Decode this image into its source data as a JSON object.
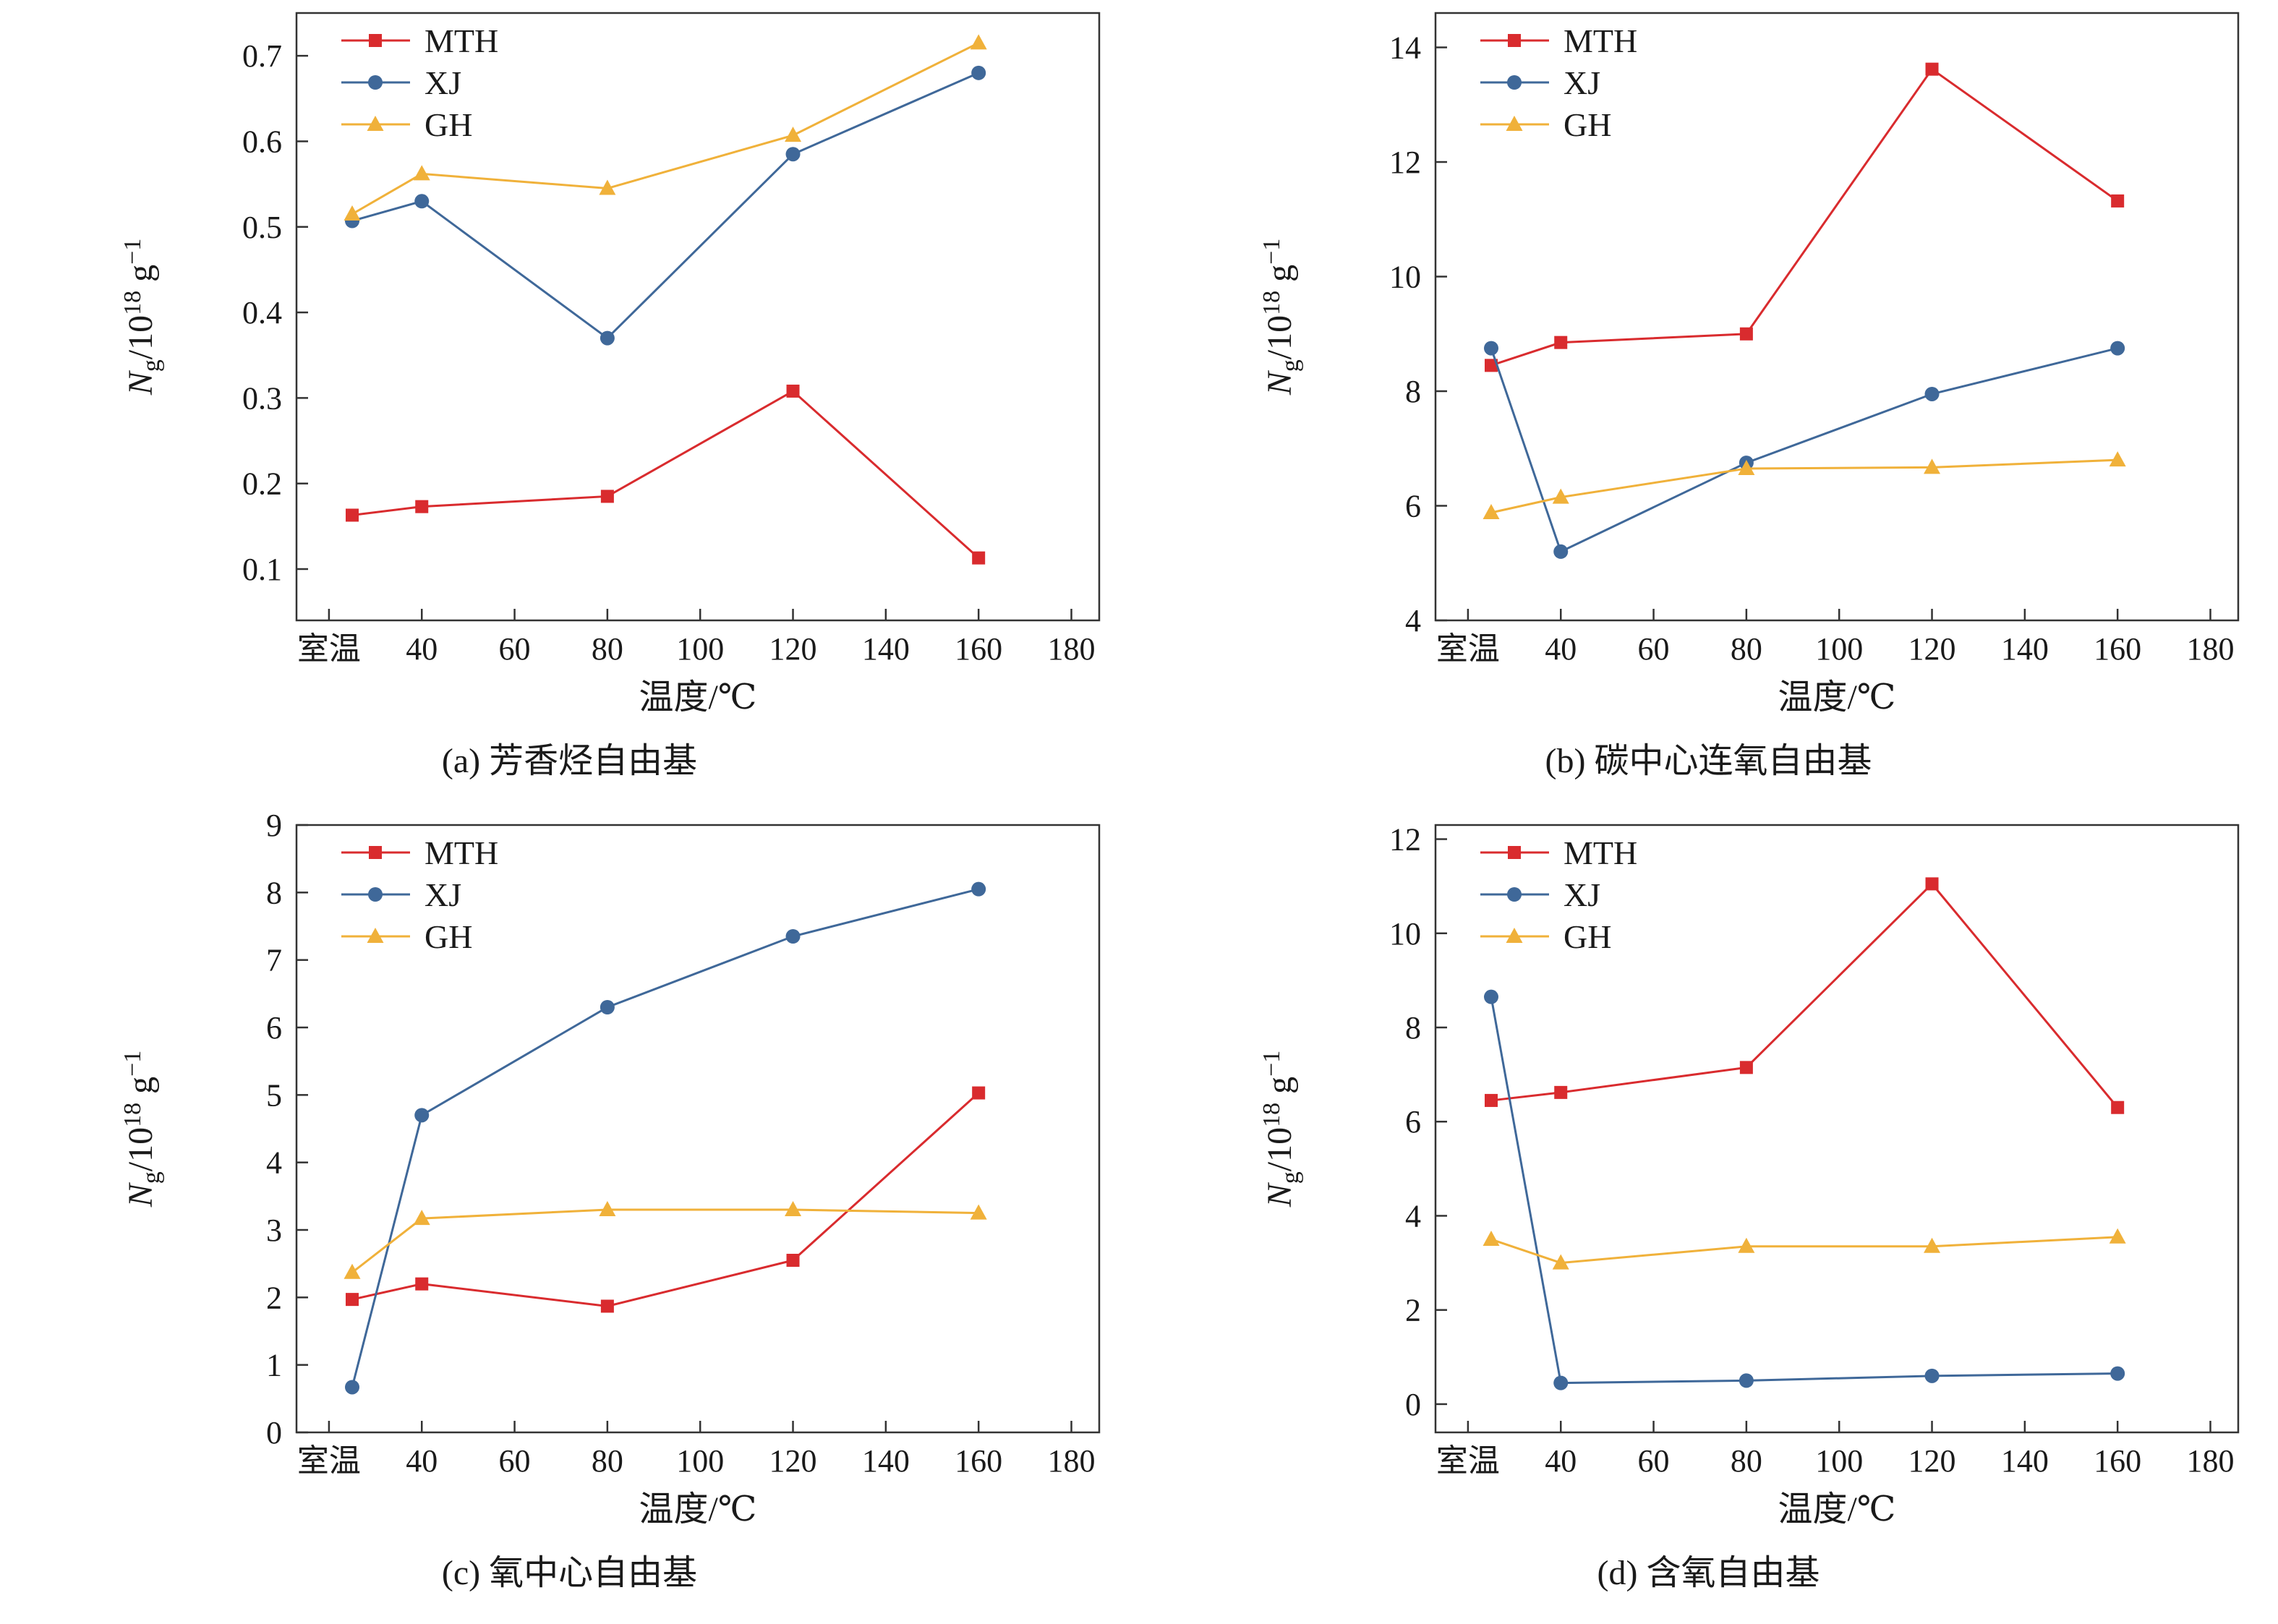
{
  "ylabel_parts": [
    {
      "t": "N",
      "i": true
    },
    {
      "t": "g",
      "sub": true
    },
    {
      "t": "/10"
    },
    {
      "t": "18",
      "sup": true
    },
    {
      "t": " g"
    },
    {
      "t": "−1",
      "sup": true
    }
  ],
  "chart_data": [
    {
      "id": "a",
      "type": "line",
      "caption": "(a) 芳香烃自由基",
      "xlabel": "温度/℃",
      "ylabel": "Ng/10^18 g^-1",
      "legend_position": "top-left",
      "x": {
        "lim": [
          13,
          186
        ],
        "ticks": {
          "values": [
            20,
            40,
            60,
            80,
            100,
            120,
            140,
            160,
            180
          ],
          "labels": [
            "室温",
            "40",
            "60",
            "80",
            "100",
            "120",
            "140",
            "160",
            "180"
          ]
        }
      },
      "y": {
        "lim": [
          0.04,
          0.75
        ],
        "ticks": {
          "values": [
            0.1,
            0.2,
            0.3,
            0.4,
            0.5,
            0.6,
            0.7
          ],
          "labels": [
            "0.1",
            "0.2",
            "0.3",
            "0.4",
            "0.5",
            "0.6",
            "0.7"
          ]
        }
      },
      "series": [
        {
          "name": "MTH",
          "color": "#d92b2e",
          "marker": "square",
          "x": [
            25,
            40,
            80,
            120,
            160
          ],
          "y": [
            0.163,
            0.173,
            0.185,
            0.308,
            0.113
          ]
        },
        {
          "name": "XJ",
          "color": "#3f6899",
          "marker": "circle",
          "x": [
            25,
            40,
            80,
            120,
            160
          ],
          "y": [
            0.507,
            0.53,
            0.37,
            0.585,
            0.68
          ]
        },
        {
          "name": "GH",
          "color": "#f0b13a",
          "marker": "triangle",
          "x": [
            25,
            40,
            80,
            120,
            160
          ],
          "y": [
            0.515,
            0.562,
            0.545,
            0.607,
            0.715
          ]
        }
      ]
    },
    {
      "id": "b",
      "type": "line",
      "caption": "(b) 碳中心连氧自由基",
      "xlabel": "温度/℃",
      "ylabel": "Ng/10^18 g^-1",
      "legend_position": "top-left",
      "x": {
        "lim": [
          13,
          186
        ],
        "ticks": {
          "values": [
            20,
            40,
            60,
            80,
            100,
            120,
            140,
            160,
            180
          ],
          "labels": [
            "室温",
            "40",
            "60",
            "80",
            "100",
            "120",
            "140",
            "160",
            "180"
          ]
        }
      },
      "y": {
        "lim": [
          4,
          14.6
        ],
        "ticks": {
          "values": [
            4,
            6,
            8,
            10,
            12,
            14
          ],
          "labels": [
            "4",
            "6",
            "8",
            "10",
            "12",
            "14"
          ]
        }
      },
      "series": [
        {
          "name": "MTH",
          "color": "#d92b2e",
          "marker": "square",
          "x": [
            25,
            40,
            80,
            120,
            160
          ],
          "y": [
            8.45,
            8.85,
            9.0,
            13.62,
            11.32
          ]
        },
        {
          "name": "XJ",
          "color": "#3f6899",
          "marker": "circle",
          "x": [
            25,
            40,
            80,
            120,
            160
          ],
          "y": [
            8.75,
            5.2,
            6.75,
            7.95,
            8.75
          ]
        },
        {
          "name": "GH",
          "color": "#f0b13a",
          "marker": "triangle",
          "x": [
            25,
            40,
            80,
            120,
            160
          ],
          "y": [
            5.88,
            6.15,
            6.65,
            6.67,
            6.8
          ]
        }
      ]
    },
    {
      "id": "c",
      "type": "line",
      "caption": "(c) 氧中心自由基",
      "xlabel": "温度/℃",
      "ylabel": "Ng/10^18 g^-1",
      "legend_position": "top-left",
      "x": {
        "lim": [
          13,
          186
        ],
        "ticks": {
          "values": [
            20,
            40,
            60,
            80,
            100,
            120,
            140,
            160,
            180
          ],
          "labels": [
            "室温",
            "40",
            "60",
            "80",
            "100",
            "120",
            "140",
            "160",
            "180"
          ]
        }
      },
      "y": {
        "lim": [
          0,
          9
        ],
        "ticks": {
          "values": [
            0,
            1,
            2,
            3,
            4,
            5,
            6,
            7,
            8,
            9
          ],
          "labels": [
            "0",
            "1",
            "2",
            "3",
            "4",
            "5",
            "6",
            "7",
            "8",
            "9"
          ]
        }
      },
      "series": [
        {
          "name": "MTH",
          "color": "#d92b2e",
          "marker": "square",
          "x": [
            25,
            40,
            80,
            120,
            160
          ],
          "y": [
            1.97,
            2.2,
            1.87,
            2.55,
            5.03
          ]
        },
        {
          "name": "XJ",
          "color": "#3f6899",
          "marker": "circle",
          "x": [
            25,
            40,
            80,
            120,
            160
          ],
          "y": [
            0.67,
            4.7,
            6.3,
            7.35,
            8.05
          ]
        },
        {
          "name": "GH",
          "color": "#f0b13a",
          "marker": "triangle",
          "x": [
            25,
            40,
            80,
            120,
            160
          ],
          "y": [
            2.37,
            3.17,
            3.3,
            3.3,
            3.25
          ]
        }
      ]
    },
    {
      "id": "d",
      "type": "line",
      "caption": "(d) 含氧自由基",
      "xlabel": "温度/℃",
      "ylabel": "Ng/10^18 g^-1",
      "legend_position": "top-left",
      "x": {
        "lim": [
          13,
          186
        ],
        "ticks": {
          "values": [
            20,
            40,
            60,
            80,
            100,
            120,
            140,
            160,
            180
          ],
          "labels": [
            "室温",
            "40",
            "60",
            "80",
            "100",
            "120",
            "140",
            "160",
            "180"
          ]
        }
      },
      "y": {
        "lim": [
          -0.6,
          12.3
        ],
        "ticks": {
          "values": [
            0,
            2,
            4,
            6,
            8,
            10,
            12
          ],
          "labels": [
            "0",
            "2",
            "4",
            "6",
            "8",
            "10",
            "12"
          ]
        }
      },
      "series": [
        {
          "name": "MTH",
          "color": "#d92b2e",
          "marker": "square",
          "x": [
            25,
            40,
            80,
            120,
            160
          ],
          "y": [
            6.45,
            6.62,
            7.15,
            11.05,
            6.3
          ]
        },
        {
          "name": "XJ",
          "color": "#3f6899",
          "marker": "circle",
          "x": [
            25,
            40,
            80,
            120,
            160
          ],
          "y": [
            8.65,
            0.45,
            0.5,
            0.6,
            0.65
          ]
        },
        {
          "name": "GH",
          "color": "#f0b13a",
          "marker": "triangle",
          "x": [
            25,
            40,
            80,
            120,
            160
          ],
          "y": [
            3.5,
            3.0,
            3.35,
            3.35,
            3.55
          ]
        }
      ]
    }
  ]
}
